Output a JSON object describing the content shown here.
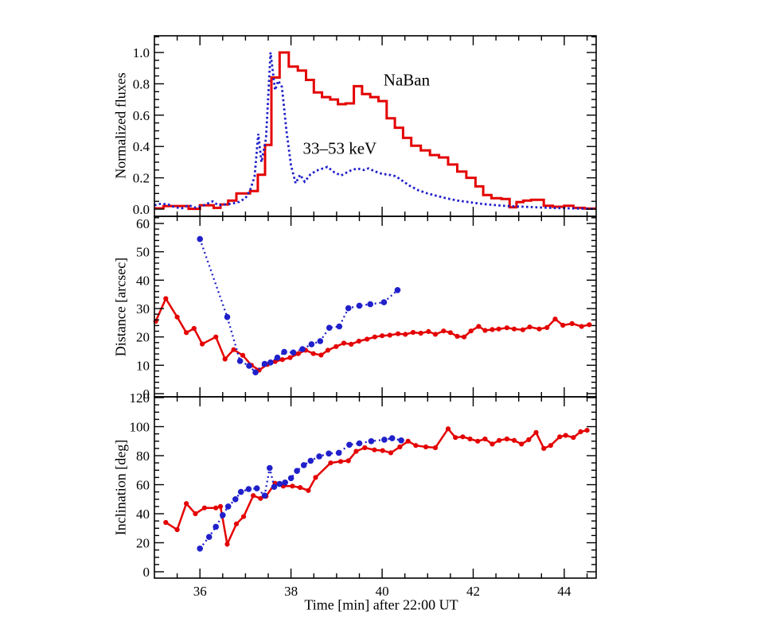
{
  "colors": {
    "naban_red": "#e40000",
    "hxr_blue": "#2020cb",
    "frame_black": "#000000",
    "background": "#ffffff"
  },
  "x_axis": {
    "title": "Time [min] after 22:00 UT",
    "range": [
      35.0,
      44.7
    ],
    "ticks": [
      36,
      38,
      40,
      42,
      44
    ],
    "tick_labels": [
      "36",
      "38",
      "40",
      "42",
      "44"
    ],
    "minor_step": 0.5
  },
  "chart_data": [
    {
      "type": "line",
      "panel": "flux",
      "title": "",
      "xlabel": "",
      "ylabel": "Normalized fluxes",
      "ylim": [
        0.0,
        1.0
      ],
      "grid": false,
      "yticks": [
        0.0,
        0.2,
        0.4,
        0.6,
        0.8,
        1.0
      ],
      "ytick_labels": [
        "0.0",
        "0.2",
        "0.4",
        "0.6",
        "0.8",
        "1.0"
      ],
      "annotations": [
        {
          "text": "NaBan",
          "x": 40.54,
          "y": 0.82
        },
        {
          "text": "33–53 keV",
          "x": 39.07,
          "y": 0.385
        }
      ],
      "series": [
        {
          "name": "NaBan",
          "style": "step",
          "color": "#e40000",
          "bin_edges": [
            35.0,
            35.2,
            35.75,
            36.0,
            36.3,
            36.45,
            36.62,
            36.8,
            37.1,
            37.27,
            37.43,
            37.57,
            37.75,
            37.95,
            38.15,
            38.33,
            38.5,
            38.68,
            38.86,
            39.03,
            39.2,
            39.38,
            39.56,
            39.74,
            39.92,
            40.1,
            40.28,
            40.46,
            40.64,
            40.85,
            41.05,
            41.25,
            41.45,
            41.65,
            41.85,
            42.05,
            42.22,
            42.4,
            42.62,
            42.8,
            42.95,
            43.1,
            43.27,
            43.55,
            43.75,
            44.0,
            44.2,
            44.45,
            44.7
          ],
          "values": [
            0.005,
            0.02,
            0.002,
            0.025,
            0.008,
            0.03,
            0.055,
            0.1,
            0.115,
            0.22,
            0.41,
            0.84,
            1.0,
            0.91,
            0.885,
            0.825,
            0.745,
            0.715,
            0.7,
            0.67,
            0.675,
            0.785,
            0.735,
            0.715,
            0.69,
            0.58,
            0.52,
            0.455,
            0.405,
            0.375,
            0.345,
            0.33,
            0.285,
            0.24,
            0.2,
            0.145,
            0.09,
            0.07,
            0.065,
            0.012,
            0.045,
            0.055,
            0.06,
            0.022,
            0.015,
            0.022,
            0.008,
            0.004
          ]
        },
        {
          "name": "33–53 keV",
          "style": "dotted",
          "color": "#2020cb",
          "x": [
            35.0,
            35.15,
            35.3,
            35.45,
            35.6,
            35.75,
            35.9,
            36.05,
            36.2,
            36.28,
            36.4,
            36.55,
            36.7,
            36.85,
            37.0,
            37.1,
            37.2,
            37.28,
            37.35,
            37.45,
            37.55,
            37.65,
            37.72,
            37.8,
            37.9,
            38.0,
            38.1,
            38.2,
            38.3,
            38.42,
            38.55,
            38.7,
            38.8,
            38.95,
            39.1,
            39.3,
            39.45,
            39.6,
            39.7,
            39.85,
            40.0,
            40.15,
            40.3,
            40.45,
            40.6,
            40.8,
            41.0,
            41.2,
            41.4,
            41.65,
            41.9,
            42.15,
            42.4,
            42.65,
            42.9,
            43.2,
            43.5,
            43.8,
            44.1,
            44.4,
            44.65
          ],
          "y": [
            0.025,
            0.035,
            0.03,
            0.012,
            0.005,
            0.025,
            0.01,
            0.02,
            0.04,
            0.05,
            0.025,
            0.03,
            0.035,
            0.045,
            0.07,
            0.12,
            0.21,
            0.48,
            0.3,
            0.45,
            1.0,
            0.76,
            0.82,
            0.78,
            0.5,
            0.28,
            0.165,
            0.22,
            0.175,
            0.22,
            0.245,
            0.26,
            0.27,
            0.235,
            0.215,
            0.245,
            0.26,
            0.25,
            0.26,
            0.24,
            0.225,
            0.22,
            0.21,
            0.18,
            0.15,
            0.12,
            0.1,
            0.085,
            0.07,
            0.055,
            0.045,
            0.035,
            0.028,
            0.022,
            0.018,
            0.014,
            0.01,
            0.007,
            0.005,
            0.003,
            0.002
          ]
        }
      ]
    },
    {
      "type": "line",
      "panel": "distance",
      "title": "",
      "xlabel": "",
      "ylabel": "Distance [arcsec]",
      "ylim": [
        0,
        60
      ],
      "grid": false,
      "yticks": [
        0,
        10,
        20,
        30,
        40,
        50,
        60
      ],
      "ytick_labels": [
        "0",
        "10",
        "20",
        "30",
        "40",
        "50",
        "60"
      ],
      "annotations": [],
      "series": [
        {
          "name": "NaBan",
          "style": "solid-markers",
          "color": "#e40000",
          "x": [
            35.03,
            35.25,
            35.5,
            35.7,
            35.87,
            36.05,
            36.35,
            36.55,
            36.74,
            36.94,
            37.13,
            37.3,
            37.48,
            37.65,
            37.81,
            37.98,
            38.16,
            38.32,
            38.49,
            38.66,
            38.81,
            38.99,
            39.16,
            39.32,
            39.49,
            39.67,
            39.84,
            40.0,
            40.17,
            40.35,
            40.51,
            40.68,
            40.85,
            41.02,
            41.17,
            41.35,
            41.5,
            41.65,
            41.8,
            41.95,
            42.12,
            42.26,
            42.42,
            42.56,
            42.74,
            42.9,
            43.09,
            43.24,
            43.45,
            43.62,
            43.8,
            43.97,
            44.17,
            44.38,
            44.55
          ],
          "y": [
            25.5,
            33.5,
            27,
            21.5,
            23,
            17.5,
            20,
            12.2,
            15.5,
            13.5,
            10,
            8.3,
            10.3,
            11.3,
            12,
            12.7,
            14.1,
            15.3,
            14.1,
            13.6,
            15.3,
            16.6,
            17.8,
            17.4,
            18.5,
            19.2,
            20,
            20.4,
            20.6,
            21.1,
            20.9,
            21.6,
            21.3,
            21.9,
            20.9,
            22.1,
            21.5,
            20.2,
            20,
            22.1,
            23.7,
            22.3,
            22.6,
            22.8,
            23.2,
            22.8,
            22.5,
            23.5,
            22.8,
            23.3,
            26.3,
            24.1,
            24.7,
            23.7,
            24.3
          ]
        },
        {
          "name": "33–53 keV",
          "style": "dotted-markers",
          "color": "#2020cb",
          "x": [
            36.0,
            36.6,
            36.88,
            37.08,
            37.22,
            37.42,
            37.55,
            37.7,
            37.85,
            38.05,
            38.25,
            38.45,
            38.64,
            38.84,
            39.06,
            39.26,
            39.5,
            39.74,
            40.04,
            40.34
          ],
          "y": [
            54.5,
            27,
            11.5,
            9.8,
            7.5,
            10.5,
            11,
            12.7,
            14.7,
            14.5,
            15.7,
            17.4,
            18.5,
            23.2,
            23.7,
            30.1,
            31,
            31.5,
            32.2,
            36.5
          ]
        }
      ]
    },
    {
      "type": "line",
      "panel": "inclination",
      "title": "",
      "xlabel": "Time [min] after 22:00 UT",
      "ylabel": "Inclination [deg]",
      "ylim": [
        0,
        120
      ],
      "grid": false,
      "yticks": [
        0,
        20,
        40,
        60,
        80,
        100,
        120
      ],
      "ytick_labels": [
        "0",
        "20",
        "40",
        "60",
        "80",
        "100",
        "120"
      ],
      "annotations": [],
      "series": [
        {
          "name": "NaBan",
          "style": "solid-markers",
          "color": "#e40000",
          "x": [
            35.25,
            35.5,
            35.7,
            35.9,
            36.1,
            36.35,
            36.45,
            36.6,
            36.8,
            36.96,
            37.17,
            37.33,
            37.45,
            37.65,
            37.83,
            38.03,
            38.2,
            38.38,
            38.54,
            38.87,
            39.09,
            39.26,
            39.43,
            39.62,
            39.83,
            40.01,
            40.19,
            40.39,
            40.57,
            40.74,
            40.96,
            41.17,
            41.45,
            41.61,
            41.77,
            41.93,
            42.1,
            42.26,
            42.42,
            42.57,
            42.74,
            42.9,
            43.06,
            43.22,
            43.38,
            43.55,
            43.7,
            43.9,
            44.03,
            44.2,
            44.36,
            44.5
          ],
          "y": [
            34,
            29,
            47,
            40,
            44,
            44,
            45,
            19,
            33,
            38,
            52.5,
            50.5,
            52,
            61,
            59,
            59,
            58,
            56,
            65,
            75,
            76,
            76.5,
            83,
            85.5,
            84,
            83.5,
            82,
            86,
            90,
            87,
            86,
            85.5,
            98.5,
            92.5,
            93,
            91.5,
            90,
            91.5,
            88,
            90.5,
            91.5,
            90.5,
            88,
            91,
            96,
            85,
            87,
            93,
            94,
            92.5,
            96.5,
            97.5
          ]
        },
        {
          "name": "33–53 keV",
          "style": "dotted-markers",
          "color": "#2020cb",
          "x": [
            36.0,
            36.2,
            36.35,
            36.5,
            36.62,
            36.78,
            36.9,
            37.07,
            37.25,
            37.42,
            37.53,
            37.63,
            37.75,
            37.87,
            38.0,
            38.13,
            38.28,
            38.43,
            38.62,
            38.83,
            39.05,
            39.28,
            39.5,
            39.76,
            40.05,
            40.22,
            40.42
          ],
          "y": [
            16,
            24,
            31,
            39,
            45,
            50,
            55,
            57,
            57.5,
            52.5,
            71.5,
            58.5,
            60.5,
            61.5,
            64.5,
            69.5,
            73.5,
            76.5,
            79.5,
            81.5,
            82,
            87.5,
            88.5,
            90,
            91,
            92,
            90.5
          ]
        }
      ]
    }
  ]
}
